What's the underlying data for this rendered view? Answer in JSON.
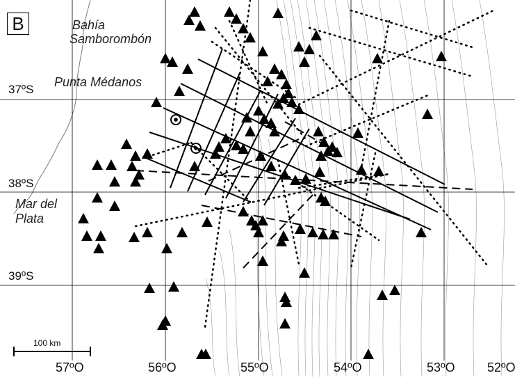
{
  "panel_label": "B",
  "places": {
    "bahia_line1": "Bahía",
    "bahia_line2": "Samborombón",
    "punta_medanos": "Punta Médanos",
    "mdp_line1": "Mar del",
    "mdp_line2": "Plata"
  },
  "latitude_labels": [
    "37ºS",
    "38ºS",
    "39ºS"
  ],
  "longitude_labels": [
    "57ºO",
    "56ºO",
    "55ºO",
    "54ºO",
    "53ºO",
    "52ºO"
  ],
  "scale_bar": {
    "label": "100 km"
  },
  "legend_symbols": {
    "station": "filled-triangle",
    "borehole": "circle-with-dot",
    "profile_solid": "solid-line",
    "profile_dashed": "dashed-line",
    "profile_dotted": "dotted-line"
  },
  "colors": {
    "symbols": "#000000",
    "contours": "#9a9a9a",
    "coast": "#7a7a7a",
    "grid": "#000000"
  }
}
